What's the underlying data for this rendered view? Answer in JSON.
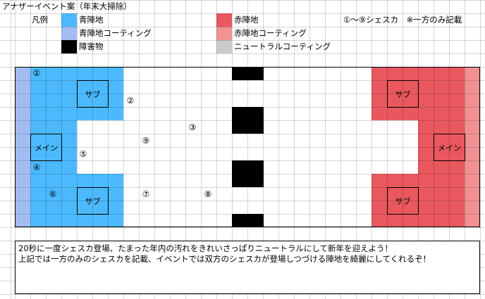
{
  "title": "アナザーイベント案（年末大掃除）",
  "legend": {
    "heading": "凡例",
    "items": [
      {
        "label": "青陣地",
        "color": "#4cb9fd"
      },
      {
        "label": "青陣地コーティング",
        "color": "#a3bdf3"
      },
      {
        "label": "障害物",
        "color": "#000000"
      },
      {
        "label": "赤陣地",
        "color": "#e8585e"
      },
      {
        "label": "赤陣地コーティング",
        "color": "#f19194"
      },
      {
        "label": "ニュートラルコーティング",
        "color": "#cbcbcb"
      }
    ],
    "note": "①〜⑨シェスカ　※一方のみ記載"
  },
  "map": {
    "blue_sub_label": "サブ",
    "blue_main_label": "メイン",
    "red_sub_label": "サブ",
    "red_main_label": "メイン",
    "spawn_points": [
      "①",
      "②",
      "③",
      "④",
      "⑤",
      "⑥",
      "⑦",
      "⑧",
      "⑨"
    ]
  },
  "description": {
    "line1": "20秒に一度シェスカ登場、たまった年内の汚れをきれいさっぱりニュートラルにして新年を迎えよう！",
    "line2": "上記では一方のみのシェスカを記載、イベントでは双方のシェスカが登場しつづける陣地を綺麗にしてくれるぞ！"
  }
}
